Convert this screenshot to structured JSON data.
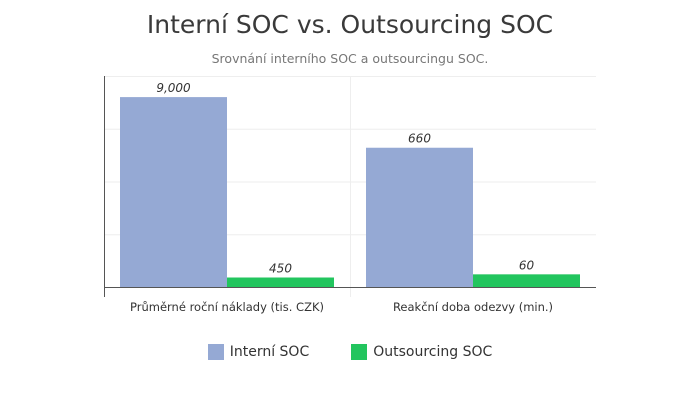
{
  "chart_data": {
    "type": "bar",
    "title": "Interní SOC vs. Outsourcing SOC",
    "subtitle": "Srovnání interního SOC a outsourcingu SOC.",
    "categories": [
      "Průměrné roční náklady (tis. CZK)",
      "Reakční doba odezvy (min.)"
    ],
    "series": [
      {
        "name": "Interní SOC",
        "color": "#95a9d4",
        "values": [
          9000,
          660
        ],
        "labels": [
          "9,000",
          "660"
        ]
      },
      {
        "name": "Outsourcing SOC",
        "color": "#22c55e",
        "values": [
          450,
          60
        ],
        "labels": [
          "450",
          "60"
        ]
      }
    ],
    "scales": [
      {
        "category": "Průměrné roční náklady (tis. CZK)",
        "ylim": [
          0,
          10000
        ]
      },
      {
        "category": "Reakční doba odezvy (min.)",
        "ylim": [
          0,
          1000
        ]
      }
    ],
    "grid": true,
    "legend": "bottom-center",
    "xlabel": "",
    "ylabel": ""
  }
}
